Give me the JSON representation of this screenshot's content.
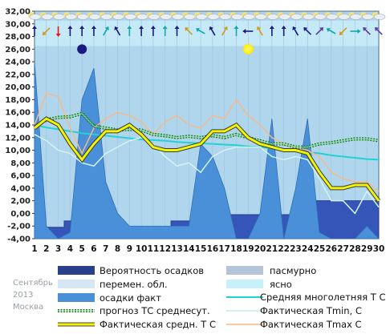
{
  "chart_data": {
    "type": "line",
    "x": [
      1,
      2,
      3,
      4,
      5,
      6,
      7,
      8,
      9,
      10,
      11,
      12,
      13,
      14,
      15,
      16,
      17,
      18,
      19,
      20,
      21,
      22,
      23,
      24,
      25,
      26,
      27,
      28,
      29,
      30
    ],
    "ylim": [
      -4,
      32
    ],
    "yticks": [
      "32,00",
      "30,00",
      "28,00",
      "26,00",
      "24,00",
      "22,00",
      "20,00",
      "18,00",
      "16,00",
      "14,00",
      "12,00",
      "10,00",
      "8,00",
      "6,00",
      "4,00",
      "2,00",
      "0,00",
      "-2,00",
      "-4,00"
    ],
    "xticks": [
      "1",
      "2",
      "3",
      "4",
      "5",
      "6",
      "7",
      "8",
      "9",
      "10",
      "11",
      "12",
      "13",
      "14",
      "15",
      "16",
      "17",
      "18",
      "19",
      "20",
      "21",
      "22",
      "23",
      "24",
      "25",
      "26",
      "27",
      "28",
      "29",
      "30"
    ],
    "watermark": [
      "Сентябрь",
      "2013",
      "Москва"
    ],
    "series": [
      {
        "name": "Вероятность осадков",
        "key": "precip_prob",
        "values": [
          -2.2,
          -2.2,
          -2.2,
          -1.2,
          -1.2,
          -1.2,
          -1.2,
          -2.2,
          -2.2,
          -2.2,
          -2.2,
          -2.2,
          -1.2,
          -1.2,
          -1.2,
          -0.2,
          -0.2,
          -0.2,
          -0.2,
          -0.2,
          -0.2,
          -0.2,
          -0.2,
          -0.2,
          2.0,
          2.0,
          2.0,
          2.0,
          2.0,
          2.0
        ]
      },
      {
        "name": "пасмурно",
        "key": "overcast"
      },
      {
        "name": "перемен. обл.",
        "key": "partly_cloudy"
      },
      {
        "name": "ясно",
        "key": "clear"
      },
      {
        "name": "осадки факт",
        "key": "precip_fact",
        "values": [
          24,
          -2,
          -4,
          -3,
          18,
          23,
          5,
          0,
          -2,
          -2,
          -2,
          -2,
          -2,
          -2,
          11,
          9,
          4,
          -4,
          -4,
          0,
          15,
          -4,
          4,
          15,
          -3,
          -4,
          -4,
          -4,
          -2,
          -4
        ]
      },
      {
        "name": "прогноз ТС среднесут.",
        "key": "forecast",
        "values": [
          13.8,
          14.8,
          15.2,
          15.3,
          15.8,
          13.8,
          13.5,
          13.2,
          13.3,
          13.2,
          12.5,
          12.3,
          12.0,
          12.2,
          12.0,
          12.3,
          12.0,
          12.5,
          12.0,
          11.5,
          11.0,
          11.0,
          10.5,
          10.5,
          11.0,
          11.2,
          11.5,
          11.8,
          11.8,
          11.5
        ]
      },
      {
        "name": "Средняя многолетняя Т С",
        "key": "climate_mean",
        "values": [
          14.0,
          13.6,
          13.3,
          13.0,
          12.7,
          12.5,
          12.3,
          12.1,
          11.9,
          11.7,
          11.6,
          11.5,
          11.3,
          11.2,
          11.1,
          11.0,
          10.9,
          10.8,
          10.6,
          10.5,
          10.3,
          10.1,
          9.9,
          9.7,
          9.5,
          9.2,
          9.0,
          8.8,
          8.6,
          8.5
        ]
      },
      {
        "name": "Фактическая Tmin, C",
        "key": "tmin",
        "values": [
          12.5,
          11.5,
          10.0,
          9.5,
          8.0,
          7.5,
          9.5,
          10.5,
          11.5,
          12.0,
          11.0,
          9.0,
          7.5,
          8.0,
          6.5,
          9.0,
          10.0,
          10.5,
          10.5,
          10.5,
          9.0,
          8.5,
          9.0,
          8.5,
          5.5,
          2.0,
          2.0,
          0.0,
          3.5,
          1.0
        ]
      },
      {
        "name": "Фактическая средн. Т С",
        "key": "tmean",
        "values": [
          13.5,
          15.0,
          14.0,
          11.0,
          8.5,
          11.0,
          13.0,
          13.0,
          14.0,
          12.5,
          10.5,
          10.0,
          10.0,
          10.5,
          11.0,
          13.0,
          13.0,
          14.0,
          12.0,
          11.0,
          10.5,
          10.0,
          10.0,
          9.5,
          6.5,
          4.0,
          4.0,
          4.5,
          4.5,
          2.0
        ]
      },
      {
        "name": "Фактическая Tmax C",
        "key": "tmax",
        "values": [
          14.0,
          19.0,
          18.5,
          13.5,
          9.5,
          13.5,
          15.0,
          16.0,
          15.5,
          14.5,
          12.5,
          14.5,
          15.5,
          14.0,
          13.5,
          15.5,
          15.0,
          18.0,
          15.5,
          14.0,
          12.0,
          11.0,
          10.5,
          10.0,
          9.0,
          6.5,
          5.5,
          5.0,
          5.0,
          3.5
        ]
      }
    ],
    "legend_position": "bottom",
    "grid": false
  },
  "colors": {
    "plot_bg": "#b0d6ee",
    "clear_band": "#c5e9f6",
    "precip_prob": "#3655b8",
    "precip_prob_dark": "#2a3f8a",
    "precip_fact": "#4a90d9",
    "forecast": "#1a7a1a",
    "climate_mean": "#22d1d1",
    "tmin": "#d6f3f3",
    "tmean": "#f4f400",
    "tmax": "#f4b98a",
    "overcast_swatch": "#b5c4d8",
    "partly_swatch": "#d6e6f2",
    "clear_swatch": "#c8f0fb"
  },
  "icons": {
    "top_row": "cloud-sun-icon (each day)",
    "wind_row": "wind-direction-arrow-icon (each day)",
    "moon_day": 5,
    "sun_day": 19
  }
}
